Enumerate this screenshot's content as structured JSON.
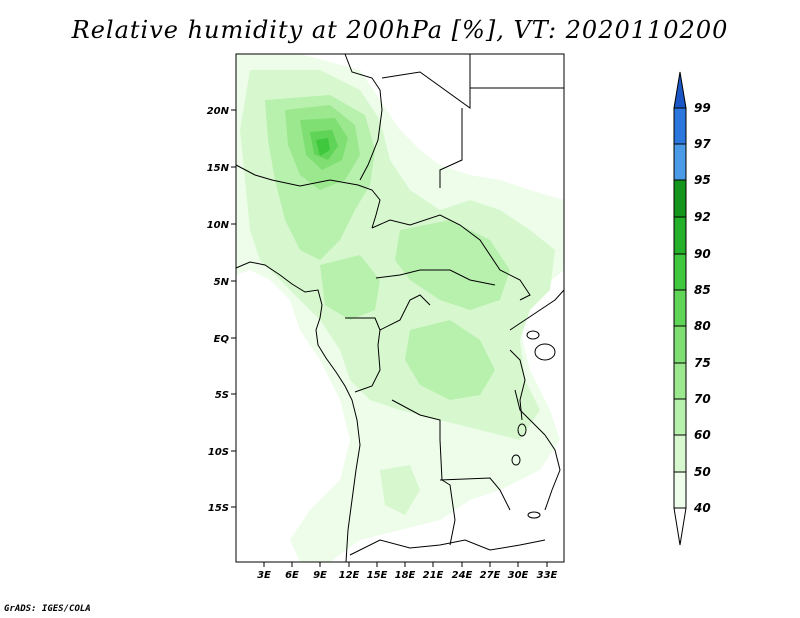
{
  "title": "Relative humidity at 200hPa [%], VT: 2020110200",
  "credit": "GrADS: IGES/COLA",
  "map": {
    "lat_labels": [
      "20N",
      "15N",
      "10N",
      "5N",
      "EQ",
      "5S",
      "10S",
      "15S"
    ],
    "lon_labels": [
      "3E",
      "6E",
      "9E",
      "12E",
      "15E",
      "18E",
      "21E",
      "24E",
      "27E",
      "30E",
      "33E"
    ]
  },
  "colorbar": {
    "levels": [
      "40",
      "50",
      "60",
      "70",
      "75",
      "80",
      "85",
      "90",
      "92",
      "95",
      "97",
      "99"
    ],
    "colors": {
      "below_40": "#ffffff",
      "40-50": "#edfdea",
      "50-60": "#d7f8cf",
      "60-70": "#b8f0ad",
      "70-75": "#9ce88f",
      "75-80": "#7fdf72",
      "80-85": "#5fd457",
      "85-90": "#3fc83e",
      "90-92": "#25b02a",
      "92-95": "#14961d",
      "95-97": "#4a9ae8",
      "97-99": "#2b77dd",
      "above_99": "#1a56c4"
    }
  }
}
